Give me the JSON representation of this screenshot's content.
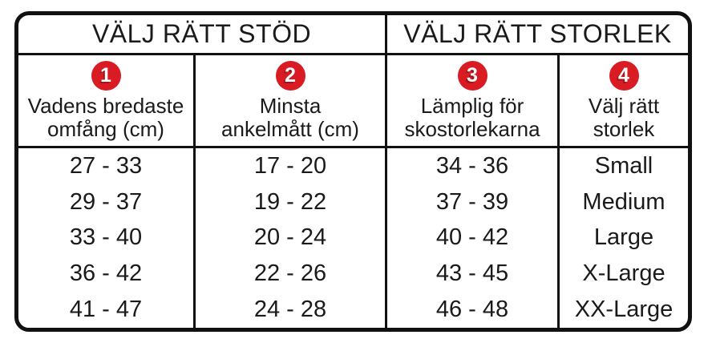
{
  "colors": {
    "badge_red": "#d91c24",
    "border_black": "#111111",
    "text": "#1a1a1a",
    "background": "#ffffff"
  },
  "section_headers": [
    "VÄLJ RÄTT STÖD",
    "VÄLJ RÄTT STORLEK"
  ],
  "columns": [
    {
      "badge": "1",
      "title_line1": "Vadens bredaste",
      "title_line2": "omfång (cm)",
      "values": [
        "27 - 33",
        "29 - 37",
        "33 - 40",
        "36 - 42",
        "41 - 47"
      ]
    },
    {
      "badge": "2",
      "title_line1": "Minsta",
      "title_line2": "ankelmått (cm)",
      "values": [
        "17 - 20",
        "19 - 22",
        "20 - 24",
        "22 - 26",
        "24 - 28"
      ]
    },
    {
      "badge": "3",
      "title_line1": "Lämplig för",
      "title_line2": "skostorlekarna",
      "values": [
        "34 - 36",
        "37 - 39",
        "40 - 42",
        "43 - 45",
        "46 - 48"
      ]
    },
    {
      "badge": "4",
      "title_line1": "Välj rätt",
      "title_line2": "storlek",
      "values": [
        "Small",
        "Medium",
        "Large",
        "X-Large",
        "XX-Large"
      ]
    }
  ],
  "chart_data": {
    "type": "table",
    "section_headers": [
      "VÄLJ RÄTT STÖD",
      "VÄLJ RÄTT STORLEK"
    ],
    "column_headers": [
      "Vadens bredaste omfång (cm)",
      "Minsta ankelmått (cm)",
      "Lämplig för skostorlekarna",
      "Välj rätt storlek"
    ],
    "rows": [
      [
        "27 - 33",
        "17 - 20",
        "34 - 36",
        "Small"
      ],
      [
        "29 - 37",
        "19 - 22",
        "37 - 39",
        "Medium"
      ],
      [
        "33 - 40",
        "20 - 24",
        "40 - 42",
        "Large"
      ],
      [
        "36 - 42",
        "22 - 26",
        "43 - 45",
        "X-Large"
      ],
      [
        "41 - 47",
        "24 - 28",
        "46 - 48",
        "XX-Large"
      ]
    ]
  }
}
